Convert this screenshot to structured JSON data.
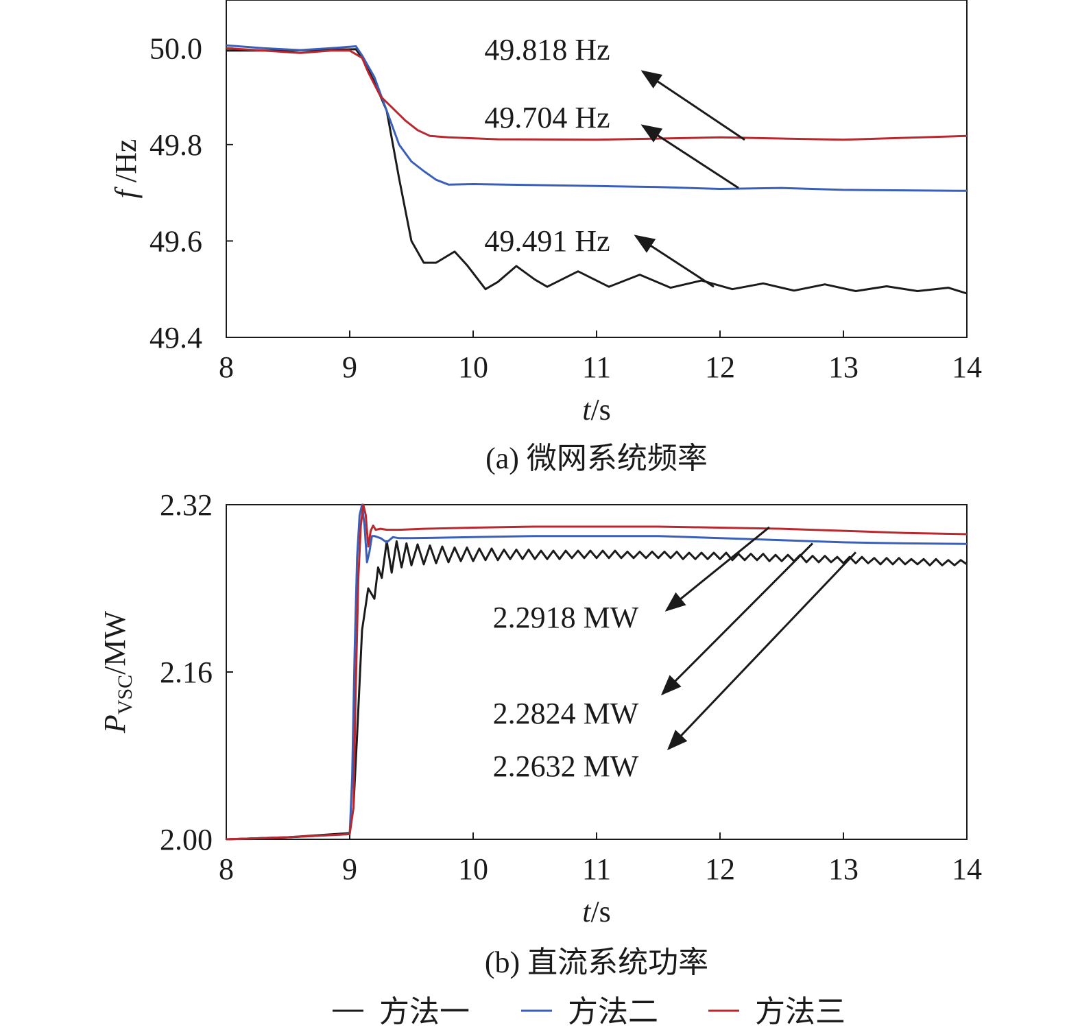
{
  "chart_data": [
    {
      "type": "line",
      "caption": "(a) 微网系统频率",
      "xlabel_var": "t",
      "xlabel_unit": "/s",
      "ylabel_var": "f",
      "ylabel_unit": " /Hz",
      "xlim": [
        8,
        14
      ],
      "ylim": [
        49.4,
        50.1
      ],
      "xticks": [
        "8",
        "9",
        "10",
        "11",
        "12",
        "13",
        "14"
      ],
      "yticks": [
        "50.0",
        "49.8",
        "49.6",
        "49.4"
      ],
      "ytick_values": [
        50.0,
        49.8,
        49.6,
        49.4
      ],
      "grid": false,
      "series": [
        {
          "name": "方法一",
          "color": "#1a1a1a",
          "x": [
            8.0,
            8.5,
            8.9,
            9.05,
            9.1,
            9.2,
            9.3,
            9.4,
            9.5,
            9.6,
            9.7,
            9.85,
            9.95,
            10.1,
            10.2,
            10.35,
            10.5,
            10.6,
            10.85,
            11.1,
            11.35,
            11.6,
            11.85,
            12.1,
            12.35,
            12.6,
            12.85,
            13.1,
            13.35,
            13.6,
            13.85,
            14.0
          ],
          "y": [
            49.995,
            49.995,
            49.997,
            49.998,
            49.98,
            49.93,
            49.87,
            49.73,
            49.6,
            49.555,
            49.555,
            49.578,
            49.55,
            49.5,
            49.515,
            49.548,
            49.52,
            49.505,
            49.537,
            49.505,
            49.53,
            49.503,
            49.518,
            49.5,
            49.512,
            49.497,
            49.51,
            49.496,
            49.506,
            49.496,
            49.503,
            49.491
          ]
        },
        {
          "name": "方法二",
          "color": "#3a5fb8",
          "x": [
            8.0,
            8.3,
            8.6,
            8.9,
            9.05,
            9.1,
            9.2,
            9.3,
            9.4,
            9.5,
            9.6,
            9.7,
            9.8,
            10.0,
            10.5,
            11.0,
            11.5,
            12.0,
            12.5,
            13.0,
            13.5,
            14.0
          ],
          "y": [
            50.006,
            50.0,
            49.996,
            50.001,
            50.004,
            49.985,
            49.94,
            49.87,
            49.8,
            49.765,
            49.745,
            49.727,
            49.717,
            49.718,
            49.716,
            49.714,
            49.712,
            49.708,
            49.71,
            49.706,
            49.705,
            49.704
          ]
        },
        {
          "name": "方法三",
          "color": "#b8282e",
          "x": [
            8.0,
            8.3,
            8.6,
            8.85,
            9.0,
            9.1,
            9.15,
            9.25,
            9.35,
            9.45,
            9.55,
            9.65,
            9.8,
            10.2,
            11.0,
            12.0,
            13.0,
            14.0
          ],
          "y": [
            50.0,
            49.995,
            49.99,
            49.995,
            49.995,
            49.98,
            49.95,
            49.9,
            49.875,
            49.85,
            49.83,
            49.818,
            49.815,
            49.811,
            49.81,
            49.815,
            49.81,
            49.818
          ]
        }
      ],
      "annotations": [
        {
          "text": "49.818 Hz",
          "target": [
            12.2,
            49.81
          ]
        },
        {
          "text": "49.704 Hz",
          "target": [
            12.15,
            49.71
          ]
        },
        {
          "text": "49.491 Hz",
          "target": [
            11.95,
            49.505
          ]
        }
      ]
    },
    {
      "type": "line",
      "caption": "(b) 直流系统功率",
      "xlabel_var": "t",
      "xlabel_unit": "/s",
      "ylabel_var": "P",
      "ylabel_sub": "VSC",
      "ylabel_unit": "/MW",
      "xlim": [
        8,
        14
      ],
      "ylim": [
        2.0,
        2.32
      ],
      "xticks": [
        "8",
        "9",
        "10",
        "11",
        "12",
        "13",
        "14"
      ],
      "yticks": [
        "2.32",
        "2.16",
        "2.00"
      ],
      "ytick_values": [
        2.32,
        2.16,
        2.0
      ],
      "grid": false,
      "series": [
        {
          "name": "方法一",
          "color": "#1a1a1a",
          "x": [
            8.0,
            8.5,
            9.0,
            9.03,
            9.06,
            9.1,
            9.15,
            9.2,
            9.23,
            9.26,
            9.3,
            9.34,
            9.38,
            9.42,
            9.46,
            9.5,
            9.55,
            9.6,
            9.65,
            9.7,
            9.75,
            9.8,
            9.85,
            9.9,
            9.95,
            10.0,
            10.05,
            10.1,
            10.15,
            10.2,
            10.25,
            10.3,
            10.35,
            10.4,
            10.45,
            10.5,
            10.55,
            10.6,
            10.65,
            10.7,
            10.75,
            10.8,
            10.85,
            10.9,
            10.95,
            11.0,
            11.05,
            11.1,
            11.15,
            11.2,
            11.25,
            11.3,
            11.35,
            11.4,
            11.45,
            11.5,
            11.55,
            11.6,
            11.65,
            11.7,
            11.75,
            11.8,
            11.85,
            11.9,
            11.95,
            12.0,
            12.05,
            12.1,
            12.15,
            12.2,
            12.25,
            12.3,
            12.35,
            12.4,
            12.45,
            12.5,
            12.55,
            12.6,
            12.65,
            12.7,
            12.75,
            12.8,
            12.85,
            12.9,
            12.95,
            13.0,
            13.05,
            13.1,
            13.15,
            13.2,
            13.25,
            13.3,
            13.35,
            13.4,
            13.45,
            13.5,
            13.55,
            13.6,
            13.65,
            13.7,
            13.75,
            13.8,
            13.85,
            13.9,
            13.95,
            14.0
          ],
          "y": [
            2.0,
            2.002,
            2.006,
            2.03,
            2.1,
            2.2,
            2.24,
            2.23,
            2.26,
            2.25,
            2.285,
            2.255,
            2.285,
            2.26,
            2.283,
            2.262,
            2.282,
            2.263,
            2.281,
            2.264,
            2.28,
            2.265,
            2.279,
            2.266,
            2.279,
            2.266,
            2.278,
            2.267,
            2.278,
            2.267,
            2.277,
            2.268,
            2.277,
            2.268,
            2.277,
            2.268,
            2.276,
            2.268,
            2.276,
            2.268,
            2.276,
            2.269,
            2.276,
            2.269,
            2.276,
            2.269,
            2.276,
            2.269,
            2.276,
            2.269,
            2.275,
            2.269,
            2.275,
            2.269,
            2.275,
            2.269,
            2.275,
            2.269,
            2.275,
            2.268,
            2.274,
            2.268,
            2.274,
            2.268,
            2.274,
            2.268,
            2.274,
            2.267,
            2.273,
            2.267,
            2.273,
            2.267,
            2.273,
            2.266,
            2.272,
            2.266,
            2.272,
            2.266,
            2.272,
            2.265,
            2.271,
            2.265,
            2.271,
            2.265,
            2.27,
            2.264,
            2.27,
            2.264,
            2.27,
            2.264,
            2.269,
            2.263,
            2.269,
            2.263,
            2.269,
            2.263,
            2.268,
            2.263,
            2.268,
            2.262,
            2.268,
            2.262,
            2.267,
            2.262,
            2.267,
            2.263
          ]
        },
        {
          "name": "方法二",
          "color": "#3a5fb8",
          "x": [
            8.0,
            8.5,
            9.0,
            9.02,
            9.04,
            9.06,
            9.08,
            9.1,
            9.12,
            9.14,
            9.16,
            9.18,
            9.2,
            9.25,
            9.3,
            9.35,
            9.4,
            9.5,
            10.0,
            10.5,
            11.0,
            11.5,
            12.0,
            12.5,
            13.0,
            13.5,
            14.0
          ],
          "y": [
            2.0,
            2.002,
            2.005,
            2.06,
            2.18,
            2.27,
            2.31,
            2.32,
            2.3,
            2.265,
            2.275,
            2.29,
            2.29,
            2.288,
            2.284,
            2.289,
            2.288,
            2.288,
            2.289,
            2.29,
            2.29,
            2.29,
            2.288,
            2.286,
            2.284,
            2.283,
            2.2824
          ]
        },
        {
          "name": "方法三",
          "color": "#b8282e",
          "x": [
            8.0,
            8.5,
            9.0,
            9.03,
            9.05,
            9.07,
            9.09,
            9.11,
            9.13,
            9.15,
            9.17,
            9.19,
            9.21,
            9.25,
            9.3,
            9.4,
            9.6,
            10.0,
            10.5,
            11.0,
            11.5,
            12.0,
            12.5,
            13.0,
            13.5,
            14.0
          ],
          "y": [
            2.0,
            2.002,
            2.005,
            2.03,
            2.15,
            2.25,
            2.3,
            2.32,
            2.31,
            2.28,
            2.295,
            2.3,
            2.296,
            2.297,
            2.296,
            2.296,
            2.297,
            2.298,
            2.299,
            2.299,
            2.299,
            2.298,
            2.297,
            2.295,
            2.293,
            2.2918
          ]
        }
      ],
      "annotations": [
        {
          "text": "2.2918 MW",
          "target": [
            12.4,
            2.2985
          ]
        },
        {
          "text": "2.2824 MW",
          "target": [
            12.75,
            2.283
          ]
        },
        {
          "text": "2.2632 MW",
          "target": [
            13.1,
            2.2745
          ]
        }
      ]
    }
  ],
  "legend": {
    "placement": "bottom",
    "items": [
      {
        "label": "方法一",
        "color": "#1a1a1a"
      },
      {
        "label": "方法二",
        "color": "#3a5fb8"
      },
      {
        "label": "方法三",
        "color": "#b8282e"
      }
    ]
  }
}
